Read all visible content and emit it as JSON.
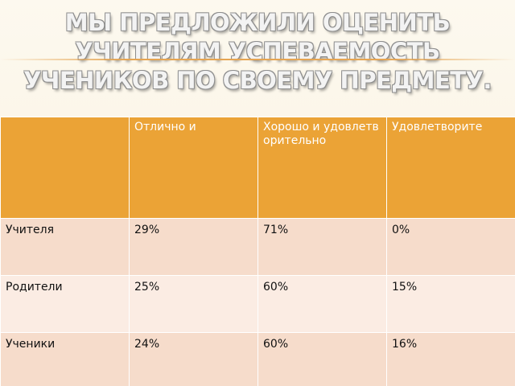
{
  "slide": {
    "title": "МЫ ПРЕДЛОЖИЛИ ОЦЕНИТЬ УЧИТЕЛЯМ УСПЕВАЕМОСТЬ УЧЕНИКОВ ПО СВОЕМУ ПРЕДМЕТУ."
  },
  "table": {
    "headers": [
      "",
      "Отлично и",
      "Хорошо и удовлетворительно",
      "Удовлетворите"
    ],
    "rows": [
      {
        "label": "Учителя",
        "cells": [
          "29%",
          "71%",
          "0%"
        ]
      },
      {
        "label": "Родители",
        "cells": [
          "25%",
          "60%",
          "15%"
        ]
      },
      {
        "label": "Ученики",
        "cells": [
          "24%",
          "60%",
          "16%"
        ]
      }
    ]
  },
  "colors": {
    "header_fill": "#eba336",
    "row_fill_a": "#f6dccb",
    "row_fill_b": "#fbece3",
    "accent_line": "#e6a552",
    "title_text": "#f3f3f3"
  }
}
